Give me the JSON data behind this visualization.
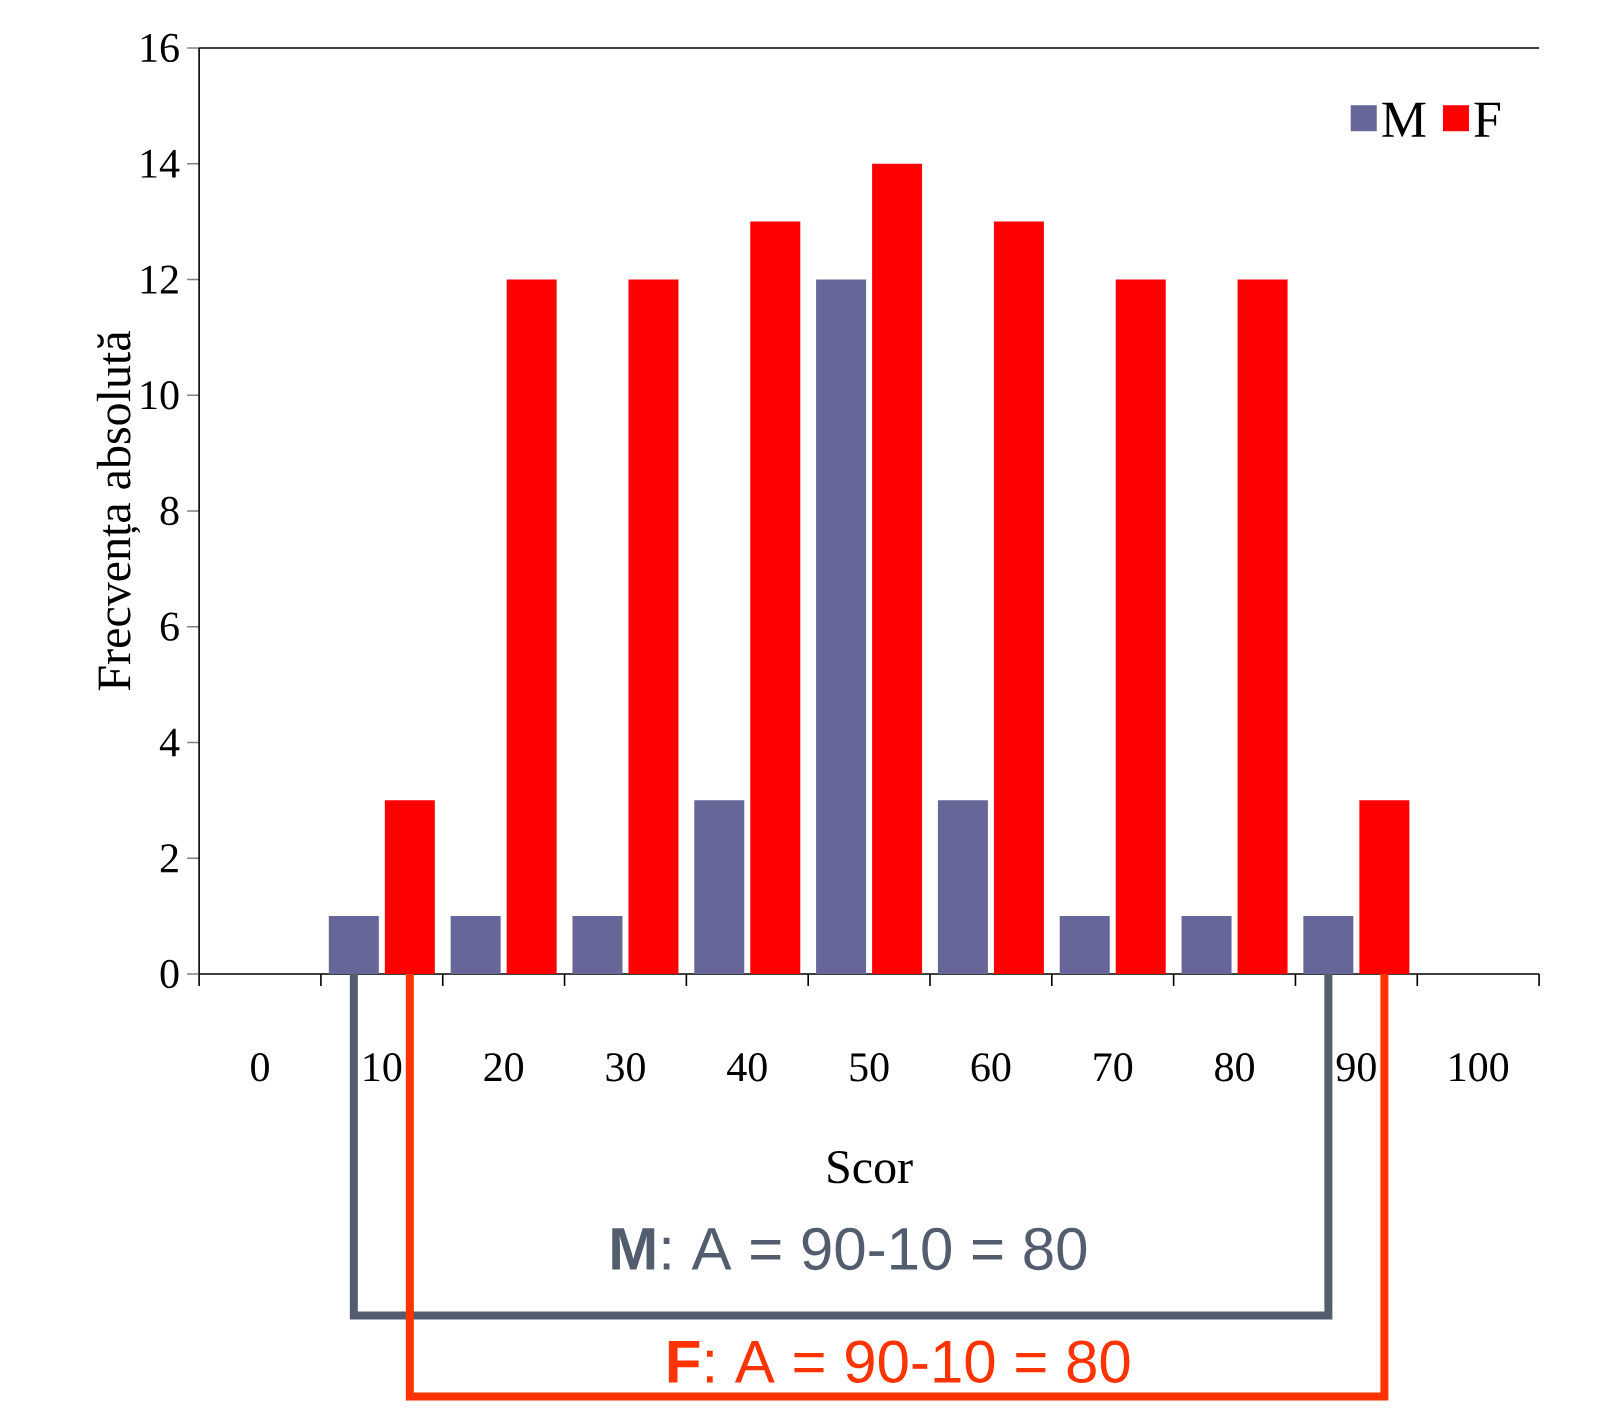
{
  "chart_data": {
    "type": "bar",
    "xlabel": "Scor",
    "ylabel": "Frecvența absolută",
    "categories": [
      "0",
      "10",
      "20",
      "30",
      "40",
      "50",
      "60",
      "70",
      "80",
      "90",
      "100"
    ],
    "series": [
      {
        "name": "M",
        "color": "#666699",
        "values": [
          null,
          1,
          1,
          1,
          3,
          12,
          3,
          1,
          1,
          1,
          null
        ]
      },
      {
        "name": "F",
        "color": "#ff0000",
        "values": [
          null,
          3,
          12,
          12,
          13,
          14,
          13,
          12,
          12,
          3,
          null
        ]
      }
    ],
    "ylim": [
      0,
      16
    ],
    "yticks": [
      0,
      2,
      4,
      6,
      8,
      10,
      12,
      14,
      16
    ],
    "legend": "top right",
    "grid": false,
    "annotations": [
      "**M**: A = 90-10 = 80",
      "**F**: A = 90-10 = 80"
    ]
  }
}
